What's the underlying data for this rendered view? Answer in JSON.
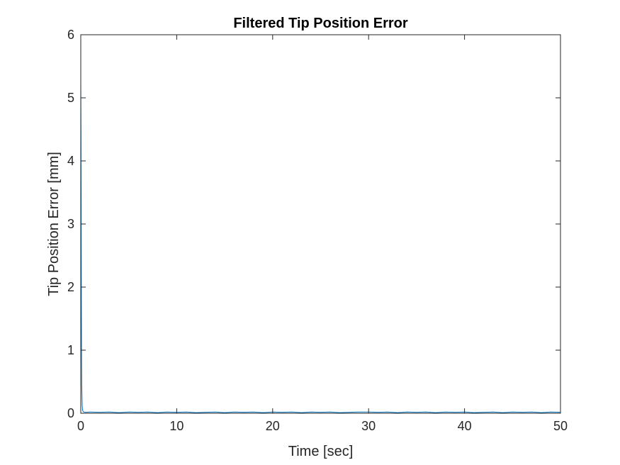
{
  "chart_data": {
    "type": "line",
    "title": "Filtered Tip Position Error",
    "xlabel": "Time [sec]",
    "ylabel": "Tip Position Error [mm]",
    "xlim": [
      0,
      50
    ],
    "ylim": [
      0,
      6
    ],
    "xticks": [
      0,
      10,
      20,
      30,
      40,
      50
    ],
    "yticks": [
      0,
      1,
      2,
      3,
      4,
      5,
      6
    ],
    "xtick_labels": [
      "0",
      "10",
      "20",
      "30",
      "40",
      "50"
    ],
    "ytick_labels": [
      "0",
      "1",
      "2",
      "3",
      "4",
      "5",
      "6"
    ],
    "grid": false,
    "box": true,
    "series": [
      {
        "color": "#0072BD",
        "x": [
          0,
          0.02,
          0.04,
          0.06,
          0.08,
          0.1,
          0.15,
          0.2,
          0.3,
          0.5,
          1,
          2,
          3,
          4,
          5,
          6,
          7,
          8,
          9,
          10,
          11,
          12,
          13,
          14,
          15,
          16,
          17,
          18,
          19,
          20,
          21,
          22,
          23,
          24,
          25,
          26,
          27,
          28,
          29,
          30,
          31,
          32,
          33,
          34,
          35,
          36,
          37,
          38,
          39,
          40,
          41,
          42,
          43,
          44,
          45,
          46,
          47,
          48,
          49,
          50
        ],
        "y": [
          5.3,
          4.5,
          3.2,
          2.0,
          1.0,
          0.45,
          0.12,
          0.04,
          0.02,
          0.015,
          0.02,
          0.015,
          0.02,
          0.01,
          0.02,
          0.015,
          0.02,
          0.01,
          0.02,
          0.015,
          0.02,
          0.01,
          0.015,
          0.02,
          0.01,
          0.02,
          0.015,
          0.02,
          0.01,
          0.02,
          0.015,
          0.02,
          0.01,
          0.02,
          0.015,
          0.02,
          0.01,
          0.015,
          0.02,
          0.02,
          0.015,
          0.02,
          0.01,
          0.02,
          0.015,
          0.02,
          0.01,
          0.02,
          0.015,
          0.02,
          0.01,
          0.015,
          0.02,
          0.01,
          0.02,
          0.015,
          0.02,
          0.01,
          0.02,
          0.015
        ]
      }
    ]
  }
}
